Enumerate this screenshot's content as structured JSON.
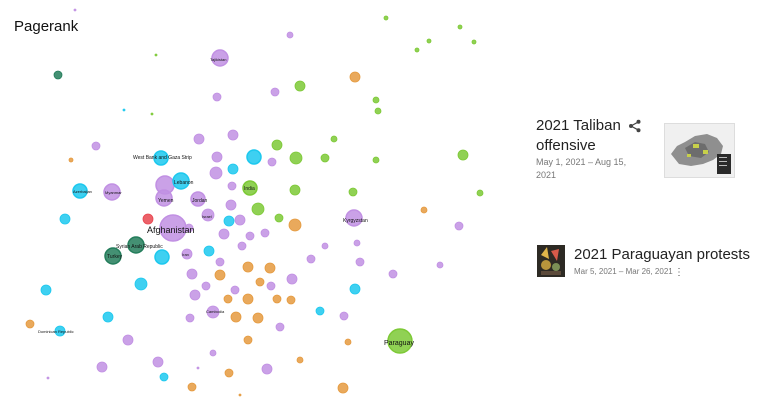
{
  "page": {
    "title": "Pagerank"
  },
  "palette": {
    "purple": "#c190e3",
    "blue": "#1cc8ee",
    "green": "#7dc936",
    "orange": "#e59a3f",
    "teal": "#237d5b",
    "red": "#e8454f"
  },
  "graph": {
    "labels": {
      "afghanistan": "Afghanistan",
      "paraguay": "Paraguay",
      "west_bank": "West Bank and Gaza Strip",
      "lebanon": "Lebanon",
      "yemen": "Yemen",
      "jordan": "Jordan",
      "kyrgyzstan": "Kyrgyzstan",
      "syria": "Syrian Arab Republic",
      "turkey": "Turkey",
      "india": "India",
      "tajikistan": "Tajikistan",
      "myanmar": "Myanmar",
      "israel": "Israel",
      "iran": "Iran",
      "dominican_republic": "Dominican Republic",
      "azerbaijan": "Azerbaijan",
      "cambodia": "Cambodia"
    }
  },
  "cards": {
    "taliban": {
      "title": "2021 Taliban offensive",
      "date": "May 1, 2021 – Aug 15, 2021",
      "share_icon": "share-icon"
    },
    "paraguay": {
      "title": "2021 Paraguayan protests",
      "date": "Mar 5, 2021 – Mar 26, 2021",
      "more_icon": "more-vert-icon"
    }
  }
}
